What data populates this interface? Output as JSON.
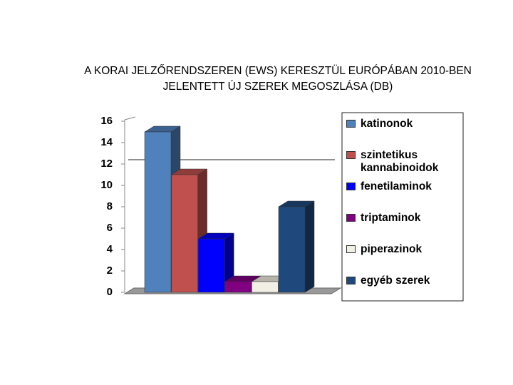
{
  "chart_data": {
    "type": "bar3d",
    "title": [
      "A KORAI JELZŐRENDSZEREN (EWS) KERESZTÜL EURÓPÁBAN 2010-BEN",
      "JELENTETT ÚJ SZEREK MEGOSZLÁSA (DB)"
    ],
    "series": [
      {
        "name": "katinonok",
        "color": "#4f81bd",
        "values": [
          15
        ]
      },
      {
        "name": "szintetikus kannabinoidok",
        "color": "#c0504d",
        "values": [
          11
        ]
      },
      {
        "name": "fenetilaminok",
        "color": "#0000ff",
        "values": [
          5
        ]
      },
      {
        "name": "triptaminok",
        "color": "#800080",
        "values": [
          1
        ]
      },
      {
        "name": "piperazinok",
        "color": "#f2efe4",
        "values": [
          1
        ]
      },
      {
        "name": "egyéb szerek",
        "color": "#1f497d",
        "values": [
          8
        ]
      }
    ],
    "ylim": [
      0,
      16
    ],
    "yticks": [
      0,
      2,
      4,
      6,
      8,
      10,
      12,
      14,
      16
    ],
    "legend": "right"
  }
}
